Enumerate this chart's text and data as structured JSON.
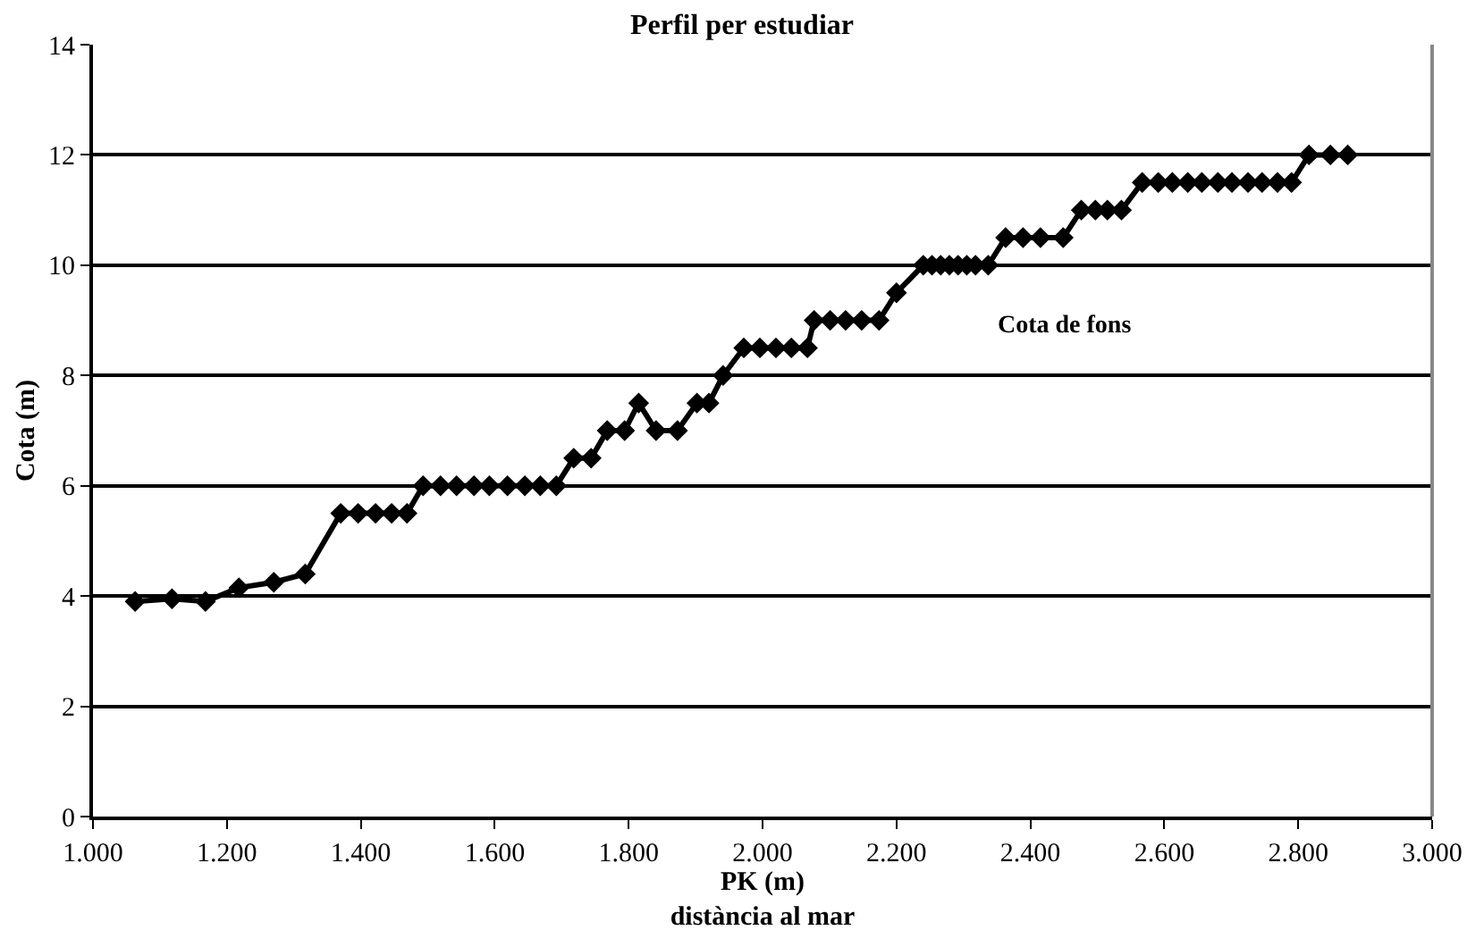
{
  "chart_data": {
    "type": "line",
    "title": "Perfil per estudiar",
    "xlabel": "PK (m)\ndistància al mar",
    "ylabel": "Cota (m)",
    "series": [
      {
        "name": "Cota de fons",
        "color": "#000000",
        "x": [
          1063,
          1118,
          1168,
          1218,
          1270,
          1317,
          1370,
          1396,
          1422,
          1446,
          1469,
          1493,
          1519,
          1543,
          1569,
          1592,
          1619,
          1645,
          1668,
          1692,
          1718,
          1744,
          1768,
          1794,
          1815,
          1841,
          1873,
          1902,
          1920,
          1941,
          1972,
          1996,
          2020,
          2043,
          2067,
          2077,
          2101,
          2124,
          2148,
          2174,
          2200,
          2240,
          2253,
          2266,
          2279,
          2292,
          2305,
          2318,
          2337,
          2363,
          2389,
          2415,
          2449,
          2476,
          2497,
          2515,
          2536,
          2567,
          2591,
          2612,
          2635,
          2656,
          2680,
          2701,
          2725,
          2746,
          2769,
          2790,
          2816,
          2848,
          2874
        ],
        "values": [
          3.9,
          3.95,
          3.9,
          4.15,
          4.25,
          4.4,
          5.5,
          5.5,
          5.5,
          5.5,
          5.5,
          6,
          6,
          6,
          6,
          6,
          6,
          6,
          6,
          6,
          6.5,
          6.5,
          7,
          7,
          7.5,
          7,
          7,
          7.5,
          7.5,
          8,
          8.5,
          8.5,
          8.5,
          8.5,
          8.5,
          9,
          9,
          9,
          9,
          9,
          9.5,
          10,
          10,
          10,
          10,
          10,
          10,
          10,
          10,
          10.5,
          10.5,
          10.5,
          10.5,
          11,
          11,
          11,
          11,
          11.5,
          11.5,
          11.5,
          11.5,
          11.5,
          11.5,
          11.5,
          11.5,
          11.5,
          11.5,
          11.5,
          12,
          12,
          12
        ]
      }
    ],
    "xlim": [
      1000,
      3000
    ],
    "xticks": [
      {
        "value": 1000,
        "label": "1.000"
      },
      {
        "value": 1200,
        "label": "1.200"
      },
      {
        "value": 1400,
        "label": "1.400"
      },
      {
        "value": 1600,
        "label": "1.600"
      },
      {
        "value": 1800,
        "label": "1.800"
      },
      {
        "value": 2000,
        "label": "2.000"
      },
      {
        "value": 2200,
        "label": "2.200"
      },
      {
        "value": 2400,
        "label": "2.400"
      },
      {
        "value": 2600,
        "label": "2.600"
      },
      {
        "value": 2800,
        "label": "2.800"
      },
      {
        "value": 3000,
        "label": "3.000"
      }
    ],
    "ylim": [
      0,
      14
    ],
    "yticks": [
      0,
      2,
      4,
      6,
      8,
      10,
      12,
      14
    ],
    "grid": "y",
    "legend": false,
    "marker": "diamond",
    "line_style": "solid"
  }
}
